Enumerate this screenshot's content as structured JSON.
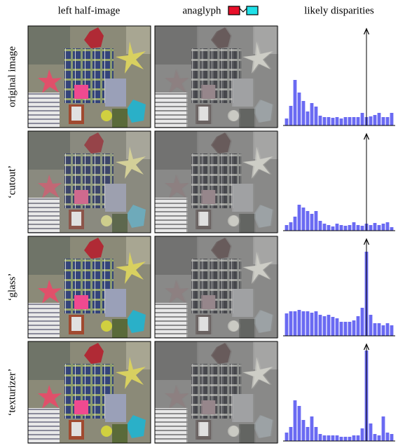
{
  "headers": [
    "left half-image",
    "anaglyph",
    "likely disparities"
  ],
  "rows": [
    {
      "label": "original image",
      "histogram": {
        "values": [
          10,
          28,
          65,
          47,
          35,
          20,
          32,
          27,
          14,
          12,
          12,
          11,
          12,
          10,
          12,
          12,
          12,
          12,
          18,
          12,
          13,
          15,
          18,
          12,
          12,
          18
        ],
        "arrow_bin": 19
      }
    },
    {
      "label": "‘cutout’",
      "histogram": {
        "values": [
          8,
          12,
          20,
          37,
          33,
          28,
          24,
          28,
          14,
          10,
          8,
          6,
          10,
          8,
          7,
          8,
          12,
          8,
          7,
          10,
          8,
          11,
          8,
          10,
          12,
          5
        ],
        "arrow_bin": 19
      }
    },
    {
      "label": "‘glass’",
      "histogram": {
        "values": [
          32,
          35,
          35,
          37,
          35,
          35,
          33,
          35,
          30,
          28,
          30,
          27,
          25,
          20,
          20,
          20,
          22,
          28,
          40,
          120,
          30,
          18,
          18,
          15,
          18,
          15
        ],
        "arrow_bin": 19
      }
    },
    {
      "label": "‘texturizer’",
      "histogram": {
        "values": [
          12,
          20,
          58,
          50,
          30,
          20,
          35,
          20,
          10,
          8,
          8,
          8,
          8,
          6,
          6,
          6,
          8,
          8,
          18,
          129,
          25,
          10,
          8,
          35,
          12,
          10
        ],
        "arrow_bin": 19
      }
    }
  ]
}
